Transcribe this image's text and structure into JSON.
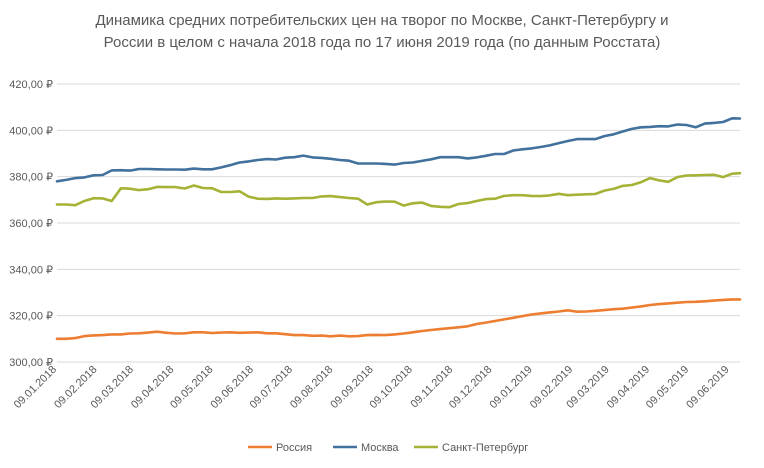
{
  "chart_data": {
    "type": "line",
    "title_lines": [
      "Динамика средних потребительских цен на творог по Москве,  Санкт-Петербургу и",
      "России в целом с начала 2018 года по 17 июня 2019 года (по данным Росстата)"
    ],
    "xlabel": "",
    "ylabel": "",
    "ylim": [
      300,
      420
    ],
    "y_ticks": [
      "300,00 ₽",
      "320,00 ₽",
      "340,00 ₽",
      "360,00 ₽",
      "380,00 ₽",
      "400,00 ₽",
      "420,00 ₽"
    ],
    "y_tick_values": [
      300,
      320,
      340,
      360,
      380,
      400,
      420
    ],
    "x_ticks": [
      "09.01.2018",
      "09.02.2018",
      "09.03.2018",
      "09.04.2018",
      "09.05.2018",
      "09.06.2018",
      "09.07.2018",
      "09.08.2018",
      "09.09.2018",
      "09.10.2018",
      "09.11.2018",
      "09.12.2018",
      "09.01.2019",
      "09.02.2019",
      "09.03.2019",
      "09.04.2019",
      "09.05.2019",
      "09.06.2019"
    ],
    "x": [
      "09.01.2018",
      "16.01.2018",
      "23.01.2018",
      "30.01.2018",
      "06.02.2018",
      "13.02.2018",
      "20.02.2018",
      "27.02.2018",
      "06.03.2018",
      "13.03.2018",
      "20.03.2018",
      "27.03.2018",
      "03.04.2018",
      "10.04.2018",
      "17.04.2018",
      "24.04.2018",
      "01.05.2018",
      "08.05.2018",
      "15.05.2018",
      "22.05.2018",
      "29.05.2018",
      "05.06.2018",
      "12.06.2018",
      "19.06.2018",
      "26.06.2018",
      "03.07.2018",
      "10.07.2018",
      "17.07.2018",
      "24.07.2018",
      "31.07.2018",
      "07.08.2018",
      "14.08.2018",
      "21.08.2018",
      "28.08.2018",
      "04.09.2018",
      "11.09.2018",
      "18.09.2018",
      "25.09.2018",
      "02.10.2018",
      "09.10.2018",
      "16.10.2018",
      "23.10.2018",
      "30.10.2018",
      "06.11.2018",
      "13.11.2018",
      "20.11.2018",
      "27.11.2018",
      "04.12.2018",
      "11.12.2018",
      "18.12.2018",
      "25.12.2018",
      "01.01.2019",
      "08.01.2019",
      "15.01.2019",
      "22.01.2019",
      "29.01.2019",
      "05.02.2019",
      "12.02.2019",
      "19.02.2019",
      "26.02.2019",
      "05.03.2019",
      "12.03.2019",
      "19.03.2019",
      "26.03.2019",
      "02.04.2019",
      "09.04.2019",
      "16.04.2019",
      "23.04.2019",
      "30.04.2019",
      "07.05.2019",
      "14.05.2019",
      "21.05.2019",
      "28.05.2019",
      "04.06.2019",
      "11.06.2019",
      "17.06.2019"
    ],
    "series": [
      {
        "name": "Россия",
        "color": "#ED7D31",
        "values": [
          310.0,
          310.0,
          310.3,
          311.2,
          311.5,
          311.6,
          311.9,
          311.9,
          312.3,
          312.4,
          312.7,
          313.1,
          312.6,
          312.3,
          312.4,
          312.8,
          312.8,
          312.5,
          312.7,
          312.8,
          312.6,
          312.7,
          312.8,
          312.4,
          312.4,
          312.0,
          311.6,
          311.6,
          311.3,
          311.4,
          311.1,
          311.4,
          311.1,
          311.2,
          311.6,
          311.7,
          311.6,
          311.9,
          312.3,
          312.8,
          313.4,
          313.8,
          314.2,
          314.6,
          315.0,
          315.4,
          316.4,
          317.0,
          317.7,
          318.4,
          319.1,
          319.8,
          320.5,
          321.0,
          321.4,
          321.8,
          322.3,
          321.7,
          321.8,
          322.1,
          322.4,
          322.8,
          323.0,
          323.5,
          324.0,
          324.6,
          325.0,
          325.3,
          325.6,
          325.9,
          326.0,
          326.2,
          326.5,
          326.8,
          327.0,
          327.0
        ],
        "label": "Россия"
      },
      {
        "name": "Москва",
        "color": "#41719C",
        "values": [
          378.0,
          378.6,
          379.4,
          379.7,
          380.6,
          380.7,
          382.7,
          382.8,
          382.6,
          383.3,
          383.3,
          383.2,
          383.1,
          383.1,
          383.0,
          383.5,
          383.2,
          383.2,
          384.0,
          385.0,
          386.1,
          386.6,
          387.2,
          387.6,
          387.4,
          388.2,
          388.4,
          389.1,
          388.3,
          388.1,
          387.7,
          387.2,
          386.9,
          385.7,
          385.7,
          385.7,
          385.5,
          385.2,
          385.9,
          386.1,
          386.8,
          387.5,
          388.4,
          388.4,
          388.4,
          387.9,
          388.3,
          389.0,
          389.8,
          389.8,
          391.3,
          391.8,
          392.2,
          392.8,
          393.5,
          394.5,
          395.4,
          396.2,
          396.2,
          396.2,
          397.5,
          398.3,
          399.5,
          400.6,
          401.3,
          401.5,
          401.8,
          401.7,
          402.5,
          402.3,
          401.3,
          402.9,
          403.2,
          403.6,
          405.2,
          405.1
        ]
      },
      {
        "name": "Санкт-Петербург",
        "color": "#A5B235",
        "values": [
          368.0,
          368.0,
          367.7,
          369.5,
          370.7,
          370.6,
          369.5,
          375.0,
          374.8,
          374.2,
          374.6,
          375.6,
          375.5,
          375.5,
          374.9,
          376.2,
          375.1,
          375.0,
          373.4,
          373.4,
          373.7,
          371.4,
          370.5,
          370.4,
          370.6,
          370.5,
          370.6,
          370.8,
          370.8,
          371.5,
          371.6,
          371.2,
          370.8,
          370.5,
          368.0,
          369.0,
          369.3,
          369.2,
          367.5,
          368.5,
          368.8,
          367.4,
          367.0,
          366.8,
          368.2,
          368.6,
          369.5,
          370.3,
          370.5,
          371.7,
          372.0,
          372.0,
          371.7,
          371.6,
          371.9,
          372.6,
          372.0,
          372.2,
          372.4,
          372.5,
          374.0,
          374.7,
          376.0,
          376.4,
          377.6,
          379.4,
          378.4,
          377.8,
          379.8,
          380.5,
          380.6,
          380.7,
          380.8,
          379.8,
          381.3,
          381.5
        ]
      }
    ],
    "grid": true,
    "legend_position": "bottom"
  }
}
